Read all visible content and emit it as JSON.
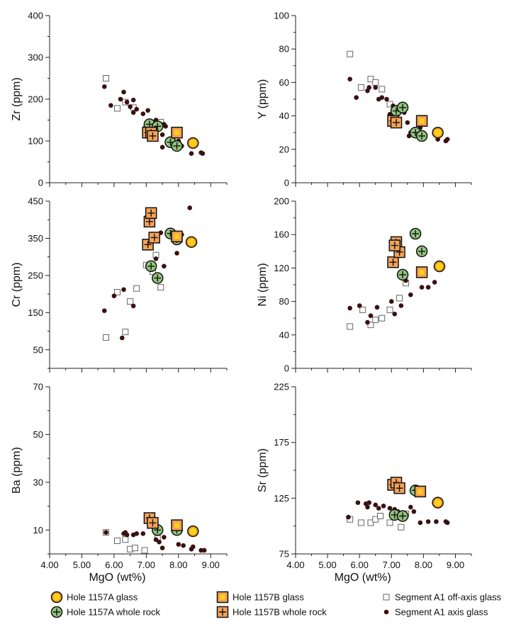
{
  "chart_data": [
    {
      "type": "scatter",
      "panel": "zr",
      "ylabel": "Zr (ppm)",
      "xlim": [
        4,
        9.5
      ],
      "ylim": [
        0,
        400
      ],
      "yticks": [
        0,
        100,
        200,
        300,
        400
      ],
      "series": [
        {
          "name": "Segment A1 axis glass",
          "points": [
            [
              5.7,
              230
            ],
            [
              5.9,
              185
            ],
            [
              6.2,
              200
            ],
            [
              6.3,
              217
            ],
            [
              6.4,
              193
            ],
            [
              6.5,
              182
            ],
            [
              6.6,
              168
            ],
            [
              6.7,
              176
            ],
            [
              6.6,
              198
            ],
            [
              6.9,
              165
            ],
            [
              7.05,
              173
            ],
            [
              7.3,
              150
            ],
            [
              7.5,
              115
            ],
            [
              7.55,
              140
            ],
            [
              7.6,
              135
            ],
            [
              7.5,
              85
            ],
            [
              8.0,
              100
            ],
            [
              8.1,
              88
            ],
            [
              8.4,
              70
            ],
            [
              8.7,
              72
            ],
            [
              8.75,
              70
            ]
          ]
        },
        {
          "name": "Segment A1 off-axis glass",
          "points": [
            [
              5.75,
              250
            ],
            [
              6.1,
              178
            ],
            [
              6.35,
              193
            ],
            [
              6.6,
              180
            ],
            [
              7.0,
              130
            ],
            [
              7.45,
              145
            ]
          ]
        },
        {
          "name": "Hole 1157A whole rock",
          "points": [
            [
              7.1,
              140
            ],
            [
              7.35,
              135
            ],
            [
              7.75,
              97
            ],
            [
              7.95,
              88
            ]
          ]
        },
        {
          "name": "Hole 1157B whole rock",
          "points": [
            [
              7.05,
              120
            ],
            [
              7.15,
              120
            ],
            [
              7.2,
              112
            ]
          ]
        },
        {
          "name": "Hole 1157B glass",
          "points": [
            [
              7.95,
              120
            ]
          ]
        },
        {
          "name": "Hole 1157A glass",
          "points": [
            [
              8.45,
              95
            ]
          ]
        }
      ]
    },
    {
      "type": "scatter",
      "panel": "y",
      "ylabel": "Y (ppm)",
      "xlim": [
        4,
        9.5
      ],
      "ylim": [
        0,
        100
      ],
      "yticks": [
        0,
        20,
        40,
        60,
        80,
        100
      ],
      "series": [
        {
          "name": "Segment A1 axis glass",
          "points": [
            [
              5.7,
              62
            ],
            [
              5.9,
              51
            ],
            [
              6.25,
              55
            ],
            [
              6.3,
              57
            ],
            [
              6.5,
              57
            ],
            [
              6.6,
              50
            ],
            [
              6.7,
              51
            ],
            [
              6.85,
              50
            ],
            [
              6.95,
              41
            ],
            [
              7.05,
              46
            ],
            [
              7.2,
              41
            ],
            [
              7.4,
              42
            ],
            [
              7.5,
              36
            ],
            [
              7.55,
              28
            ],
            [
              7.6,
              30
            ],
            [
              7.9,
              33
            ],
            [
              8.0,
              28
            ],
            [
              8.45,
              26
            ],
            [
              8.7,
              25
            ],
            [
              8.75,
              26
            ]
          ]
        },
        {
          "name": "Segment A1 off-axis glass",
          "points": [
            [
              5.7,
              77
            ],
            [
              6.05,
              57
            ],
            [
              6.35,
              62
            ],
            [
              6.5,
              60
            ],
            [
              6.7,
              56
            ],
            [
              6.95,
              47
            ],
            [
              7.05,
              40
            ]
          ]
        },
        {
          "name": "Hole 1157A whole rock",
          "points": [
            [
              7.15,
              43
            ],
            [
              7.35,
              45
            ],
            [
              7.75,
              30
            ],
            [
              7.95,
              28
            ]
          ]
        },
        {
          "name": "Hole 1157B whole rock",
          "points": [
            [
              7.05,
              37
            ],
            [
              7.15,
              36
            ]
          ]
        },
        {
          "name": "Hole 1157B glass",
          "points": [
            [
              7.95,
              37
            ]
          ]
        },
        {
          "name": "Hole 1157A glass",
          "points": [
            [
              8.45,
              30
            ]
          ]
        }
      ]
    },
    {
      "type": "scatter",
      "panel": "cr",
      "ylabel": "Cr (ppm)",
      "xlim": [
        4,
        9.5
      ],
      "ylim": [
        0,
        450
      ],
      "yticks": [
        50,
        150,
        250,
        350,
        450
      ],
      "series": [
        {
          "name": "Segment A1 axis glass",
          "points": [
            [
              5.7,
              155
            ],
            [
              6.0,
              195
            ],
            [
              6.3,
              212
            ],
            [
              6.25,
              82
            ],
            [
              6.6,
              168
            ],
            [
              7.3,
              295
            ],
            [
              7.55,
              275
            ],
            [
              7.45,
              365
            ],
            [
              7.95,
              310
            ],
            [
              8.1,
              360
            ],
            [
              8.35,
              432
            ]
          ]
        },
        {
          "name": "Segment A1 off-axis glass",
          "points": [
            [
              5.75,
              83
            ],
            [
              6.1,
              205
            ],
            [
              6.35,
              98
            ],
            [
              6.5,
              180
            ],
            [
              6.7,
              215
            ],
            [
              7.0,
              278
            ],
            [
              7.3,
              305
            ],
            [
              7.45,
              218
            ],
            [
              7.2,
              260
            ]
          ]
        },
        {
          "name": "Hole 1157A whole rock",
          "points": [
            [
              7.15,
              275
            ],
            [
              7.35,
              243
            ],
            [
              7.75,
              363
            ],
            [
              7.95,
              347
            ]
          ]
        },
        {
          "name": "Hole 1157B whole rock",
          "points": [
            [
              7.05,
              333
            ],
            [
              7.1,
              395
            ],
            [
              7.15,
              418
            ],
            [
              7.25,
              352
            ]
          ]
        },
        {
          "name": "Hole 1157B glass",
          "points": [
            [
              7.95,
              355
            ]
          ]
        },
        {
          "name": "Hole 1157A glass",
          "points": [
            [
              8.4,
              340
            ]
          ]
        }
      ]
    },
    {
      "type": "scatter",
      "panel": "ni",
      "ylabel": "Ni (ppm)",
      "xlim": [
        4,
        9.5
      ],
      "ylim": [
        0,
        200
      ],
      "yticks": [
        0,
        40,
        80,
        120,
        160,
        200
      ],
      "series": [
        {
          "name": "Segment A1 axis glass",
          "points": [
            [
              5.7,
              72
            ],
            [
              6.0,
              75
            ],
            [
              6.25,
              55
            ],
            [
              6.35,
              63
            ],
            [
              6.55,
              73
            ],
            [
              7.0,
              80
            ],
            [
              7.1,
              65
            ],
            [
              7.3,
              75
            ],
            [
              7.45,
              105
            ],
            [
              7.6,
              88
            ],
            [
              7.95,
              97
            ],
            [
              8.15,
              97
            ],
            [
              8.35,
              103
            ]
          ]
        },
        {
          "name": "Segment A1 off-axis glass",
          "points": [
            [
              5.7,
              50
            ],
            [
              6.1,
              70
            ],
            [
              6.35,
              52
            ],
            [
              6.5,
              58
            ],
            [
              6.7,
              60
            ],
            [
              6.95,
              70
            ],
            [
              7.25,
              84
            ],
            [
              7.45,
              102
            ]
          ]
        },
        {
          "name": "Hole 1157A whole rock",
          "points": [
            [
              7.35,
              112
            ],
            [
              7.75,
              161
            ],
            [
              7.95,
              140
            ]
          ]
        },
        {
          "name": "Hole 1157B whole rock",
          "points": [
            [
              7.05,
              127
            ],
            [
              7.15,
              151
            ],
            [
              7.25,
              139
            ],
            [
              7.1,
              147
            ]
          ]
        },
        {
          "name": "Hole 1157B glass",
          "points": [
            [
              7.95,
              115
            ]
          ]
        },
        {
          "name": "Hole 1157A glass",
          "points": [
            [
              8.5,
              122
            ]
          ]
        }
      ]
    },
    {
      "type": "scatter",
      "panel": "ba",
      "ylabel": "Ba (ppm)",
      "xlim": [
        4,
        9.5
      ],
      "ylim": [
        0,
        70
      ],
      "yticks": [
        10,
        30,
        50,
        70
      ],
      "series": [
        {
          "name": "Segment A1 axis glass",
          "points": [
            [
              5.75,
              9
            ],
            [
              6.3,
              8.5
            ],
            [
              6.35,
              9
            ],
            [
              6.4,
              8
            ],
            [
              6.6,
              8
            ],
            [
              6.7,
              8.5
            ],
            [
              6.9,
              8.5
            ],
            [
              7.1,
              12
            ],
            [
              7.25,
              11
            ],
            [
              7.3,
              6
            ],
            [
              7.4,
              5
            ],
            [
              7.5,
              2.5
            ],
            [
              7.55,
              7
            ],
            [
              8.0,
              4
            ],
            [
              8.15,
              3.5
            ],
            [
              8.4,
              2
            ],
            [
              8.45,
              3
            ],
            [
              8.7,
              1.5
            ],
            [
              8.8,
              1.5
            ]
          ]
        },
        {
          "name": "Segment A1 off-axis glass",
          "points": [
            [
              5.75,
              9
            ],
            [
              6.1,
              5.5
            ],
            [
              6.35,
              6
            ],
            [
              6.5,
              2
            ],
            [
              6.65,
              2.5
            ],
            [
              6.95,
              1.5
            ],
            [
              7.35,
              6.5
            ]
          ]
        },
        {
          "name": "Hole 1157A whole rock",
          "points": [
            [
              7.35,
              10
            ],
            [
              7.95,
              10
            ]
          ]
        },
        {
          "name": "Hole 1157B whole rock",
          "points": [
            [
              7.1,
              15
            ],
            [
              7.2,
              13
            ]
          ]
        },
        {
          "name": "Hole 1157B glass",
          "points": [
            [
              7.95,
              12
            ]
          ]
        },
        {
          "name": "Hole 1157A glass",
          "points": [
            [
              8.45,
              9.5
            ]
          ]
        }
      ]
    },
    {
      "type": "scatter",
      "panel": "sr",
      "ylabel": "Sr (ppm)",
      "xlim": [
        4,
        9.5
      ],
      "ylim": [
        75,
        225
      ],
      "yticks": [
        75,
        125,
        175,
        225
      ],
      "series": [
        {
          "name": "Segment A1 axis glass",
          "points": [
            [
              5.65,
              108
            ],
            [
              5.95,
              121
            ],
            [
              6.2,
              120
            ],
            [
              6.3,
              121
            ],
            [
              6.25,
              117
            ],
            [
              6.5,
              119
            ],
            [
              6.6,
              116
            ],
            [
              6.75,
              118
            ],
            [
              6.95,
              116
            ],
            [
              7.1,
              115
            ],
            [
              7.2,
              113
            ],
            [
              7.45,
              110
            ],
            [
              7.6,
              117
            ],
            [
              7.7,
              113
            ],
            [
              7.9,
              103
            ],
            [
              8.15,
              104
            ],
            [
              8.4,
              104
            ],
            [
              8.7,
              104
            ],
            [
              8.75,
              103
            ]
          ]
        },
        {
          "name": "Segment A1 off-axis glass",
          "points": [
            [
              5.7,
              106
            ],
            [
              6.05,
              103
            ],
            [
              6.35,
              103
            ],
            [
              6.5,
              106
            ],
            [
              6.65,
              109
            ],
            [
              6.95,
              103
            ],
            [
              7.3,
              99
            ],
            [
              7.45,
              111
            ]
          ]
        },
        {
          "name": "Hole 1157A whole rock",
          "points": [
            [
              7.1,
              110
            ],
            [
              7.35,
              109
            ],
            [
              7.75,
              132
            ]
          ]
        },
        {
          "name": "Hole 1157B whole rock",
          "points": [
            [
              7.05,
              137
            ],
            [
              7.15,
              139
            ],
            [
              7.25,
              134
            ]
          ]
        },
        {
          "name": "Hole 1157B glass",
          "points": [
            [
              7.9,
              131
            ]
          ]
        },
        {
          "name": "Hole 1157A glass",
          "points": [
            [
              8.45,
              121
            ]
          ]
        }
      ]
    }
  ],
  "x_axis": {
    "label": "MgO (wt%)",
    "ticks": [
      4,
      5,
      6,
      7,
      8,
      9
    ],
    "tick_labels": [
      "4.00",
      "5.00",
      "6.00",
      "7.00",
      "8.00",
      "9.00"
    ]
  },
  "legend": [
    {
      "key": "glassA",
      "label": "Hole 1157A glass"
    },
    {
      "key": "wrA",
      "label": "Hole 1157A whole rock"
    },
    {
      "key": "glassB",
      "label": "Hole 1157B glass"
    },
    {
      "key": "wrB",
      "label": "Hole 1157B whole rock"
    },
    {
      "key": "offaxis",
      "label": "Segment A1 off-axis glass"
    },
    {
      "key": "axis",
      "label": "Segment A1 axis glass"
    }
  ],
  "colors": {
    "glassA_fill": "#ffd21c",
    "glassA_ring": "#f08a1a",
    "wrA_fill": "#93c47d",
    "glassB_fill": "#f6a04d",
    "glassB_inner": "#ffd21c",
    "wrB_fill": "#f4a258",
    "axis_dot": "#3a1012",
    "outline": "#111111"
  }
}
